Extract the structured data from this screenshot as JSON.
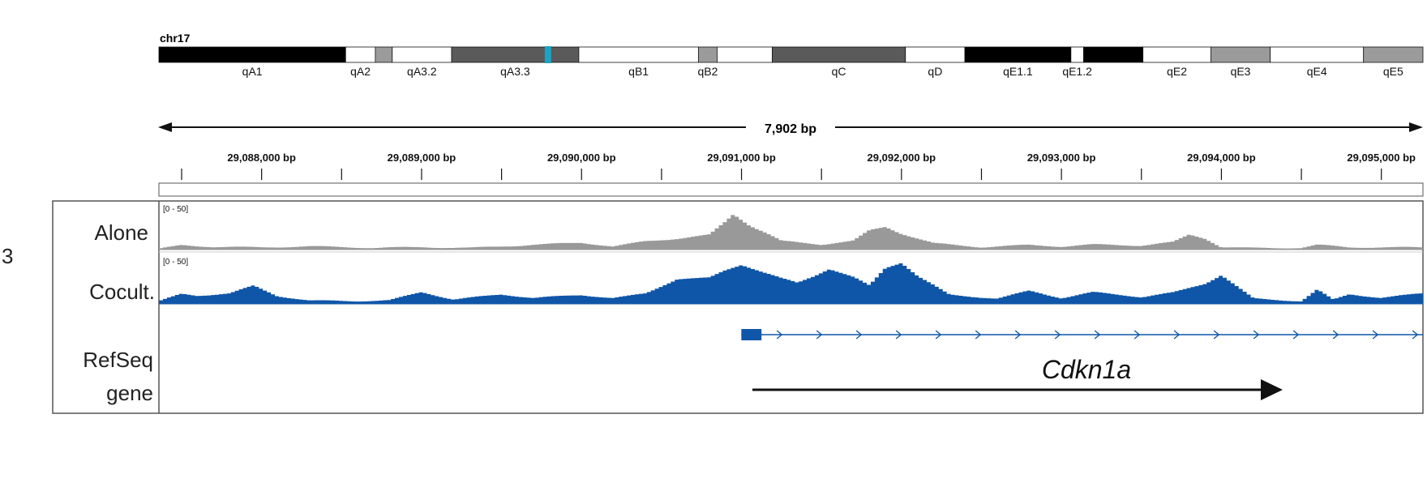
{
  "panel_letter": "3",
  "chromosome": {
    "name": "chr17",
    "bands": [
      {
        "label": "qA1",
        "stain": "#000000",
        "start": 0,
        "end": 0.1477
      },
      {
        "label": "qA2",
        "stain": "#ffffff",
        "start": 0.1477,
        "end": 0.1712
      },
      {
        "label": "",
        "stain": "#9b9b9b",
        "start": 0.1712,
        "end": 0.1846
      },
      {
        "label": "qA3.2",
        "stain": "#ffffff",
        "start": 0.1846,
        "end": 0.2315
      },
      {
        "label": "qA3.3",
        "stain": "#5a5a5a",
        "start": 0.2315,
        "end": 0.3322
      },
      {
        "label": "qB1",
        "stain": "#ffffff",
        "start": 0.3322,
        "end": 0.4268
      },
      {
        "label": "qB2",
        "stain": "#9b9b9b",
        "start": 0.4268,
        "end": 0.4416
      },
      {
        "label": "",
        "stain": "#ffffff",
        "start": 0.4416,
        "end": 0.4852
      },
      {
        "label": "qC",
        "stain": "#5a5a5a",
        "start": 0.4852,
        "end": 0.5906
      },
      {
        "label": "qD",
        "stain": "#ffffff",
        "start": 0.5906,
        "end": 0.6376
      },
      {
        "label": "qE1.1",
        "stain": "#000000",
        "start": 0.6376,
        "end": 0.7215
      },
      {
        "label": "qE1.2",
        "stain": "#ffffff",
        "start": 0.7215,
        "end": 0.7315
      },
      {
        "label": "",
        "stain": "#000000",
        "start": 0.7315,
        "end": 0.7785
      },
      {
        "label": "qE2",
        "stain": "#ffffff",
        "start": 0.7785,
        "end": 0.8322
      },
      {
        "label": "qE3",
        "stain": "#9b9b9b",
        "start": 0.8322,
        "end": 0.8792
      },
      {
        "label": "qE4",
        "stain": "#ffffff",
        "start": 0.8792,
        "end": 0.953
      },
      {
        "label": "qE5",
        "stain": "#9b9b9b",
        "start": 0.953,
        "end": 1
      }
    ],
    "highlight_position": 0.3078,
    "highlight_color": "#1aa3c4"
  },
  "ruler": {
    "span_label": "7,902 bp",
    "view_start_bp": 29087358,
    "view_end_bp": 29095260,
    "ticks": [
      {
        "bp": 29088000,
        "label": "29,088,000 bp"
      },
      {
        "bp": 29089000,
        "label": "29,089,000 bp"
      },
      {
        "bp": 29090000,
        "label": "29,090,000 bp"
      },
      {
        "bp": 29091000,
        "label": "29,091,000 bp"
      },
      {
        "bp": 29092000,
        "label": "29,092,000 bp"
      },
      {
        "bp": 29093000,
        "label": "29,093,000 bp"
      },
      {
        "bp": 29094000,
        "label": "29,094,000 bp"
      },
      {
        "bp": 29095000,
        "label": "29,095,000 bp"
      }
    ]
  },
  "tracks": [
    {
      "name": "Alone",
      "range_label": "[0 - 50]",
      "color": "#999999",
      "ymax": 50,
      "x": [
        29087358,
        29087500,
        29087700,
        29088000,
        29088300,
        29088700,
        29089000,
        29089300,
        29089600,
        29090000,
        29090200,
        29090400,
        29090600,
        29090800,
        29090900,
        29090950,
        29091000,
        29091050,
        29091150,
        29091250,
        29091500,
        29091700,
        29091800,
        29091900,
        29092000,
        29092200,
        29092500,
        29092800,
        29093000,
        29093200,
        29093500,
        29093700,
        29093800,
        29093900,
        29094000,
        29094200,
        29094500,
        29094600,
        29094800,
        29095260
      ],
      "values": [
        1,
        5,
        3,
        2,
        3,
        2,
        3,
        2,
        4,
        7,
        3,
        9,
        12,
        16,
        30,
        38,
        32,
        26,
        18,
        9,
        5,
        9,
        20,
        24,
        17,
        7,
        3,
        5,
        3,
        5,
        4,
        8,
        16,
        12,
        3,
        2,
        2,
        5,
        2,
        2
      ]
    },
    {
      "name": "Cocult.",
      "range_label": "[0 - 50]",
      "color": "#0f56a8",
      "ymax": 50,
      "x": [
        29087358,
        29087500,
        29087600,
        29087800,
        29087950,
        29088100,
        29088300,
        29088600,
        29088800,
        29089000,
        29089200,
        29089500,
        29089700,
        29090000,
        29090200,
        29090400,
        29090600,
        29090800,
        29090900,
        29091000,
        29091100,
        29091250,
        29091350,
        29091450,
        29091550,
        29091700,
        29091800,
        29091900,
        29092000,
        29092100,
        29092300,
        29092600,
        29092800,
        29093000,
        29093200,
        29093500,
        29093700,
        29093900,
        29094000,
        29094200,
        29094500,
        29094600,
        29094700,
        29094800,
        29095000,
        29095260
      ],
      "values": [
        3,
        11,
        9,
        11,
        19,
        8,
        3,
        3,
        4,
        13,
        5,
        10,
        6,
        9,
        6,
        11,
        27,
        28,
        36,
        42,
        36,
        27,
        22,
        29,
        37,
        28,
        19,
        38,
        44,
        30,
        10,
        6,
        14,
        6,
        12,
        7,
        12,
        22,
        31,
        6,
        3,
        15,
        4,
        10,
        6,
        11
      ]
    }
  ],
  "refseq": {
    "label_line1": "RefSeq",
    "label_line2": "gene",
    "gene_name": "Cdkn1a",
    "gene_start_bp": 29090999,
    "exon_end_bp": 29091125,
    "gene_end_bp": 29095260,
    "color": "#0f56a8"
  }
}
